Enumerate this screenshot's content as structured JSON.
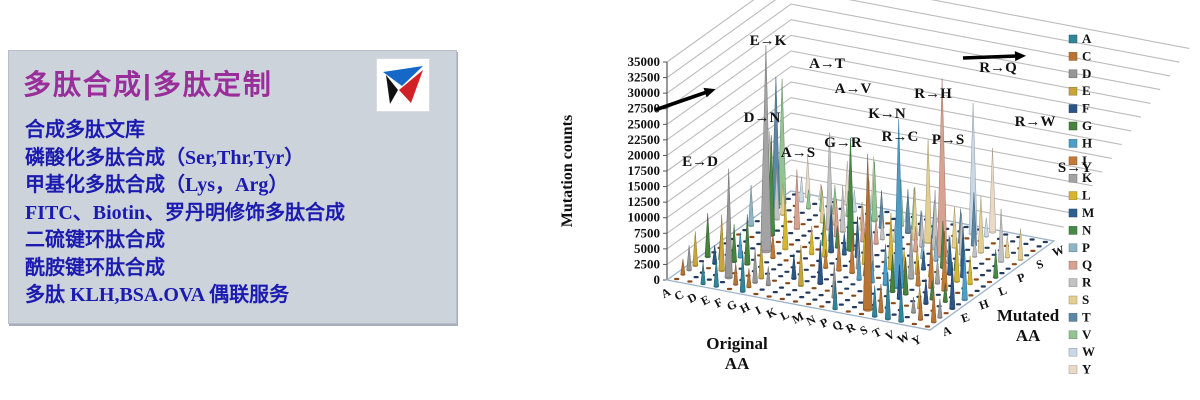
{
  "promo_panel": {
    "title": "多肽合成|多肽定制",
    "title_color": "#992d99",
    "background": "#cdd3db",
    "text_color": "#1b1bb0",
    "services": [
      "合成多肽文库",
      "磷酸化多肽合成（Ser,Thr,Tyr）",
      "甲基化多肽合成（Lys，Arg）",
      "FITC、Biotin、罗丹明修饰多肽合成",
      "二硫键环肽合成",
      "酰胺键环肽合成",
      "多肽 KLH,BSA.OVA 偶联服务"
    ],
    "logo_colors": {
      "blue": "#1668c8",
      "black": "#111111",
      "red": "#d22027"
    }
  },
  "chart_data": {
    "type": "3d-cone-grid",
    "ylabel": "Mutation counts",
    "xlabel": "Original AA",
    "zlabel": "Mutated AA",
    "ylim": [
      0,
      35000
    ],
    "ytick_step": 2500,
    "original_aa": [
      "A",
      "C",
      "D",
      "E",
      "F",
      "G",
      "H",
      "I",
      "K",
      "L",
      "M",
      "N",
      "P",
      "Q",
      "R",
      "S",
      "T",
      "V",
      "W",
      "Y"
    ],
    "mutated_aa": [
      "A",
      "C",
      "D",
      "E",
      "F",
      "G",
      "H",
      "I",
      "K",
      "L",
      "M",
      "N",
      "P",
      "Q",
      "R",
      "S",
      "T",
      "V",
      "W",
      "Y"
    ],
    "mutated_axis_shown_labels": [
      "A",
      "E",
      "H",
      "L",
      "P",
      "S",
      "W"
    ],
    "legend": [
      {
        "label": "A",
        "color": "#31859b"
      },
      {
        "label": "C",
        "color": "#b77434"
      },
      {
        "label": "D",
        "color": "#969696"
      },
      {
        "label": "E",
        "color": "#c8a53a"
      },
      {
        "label": "F",
        "color": "#2c5586"
      },
      {
        "label": "G",
        "color": "#47823f"
      },
      {
        "label": "H",
        "color": "#4d9dc6"
      },
      {
        "label": "I",
        "color": "#c17a37"
      },
      {
        "label": "K",
        "color": "#a3a3a3"
      },
      {
        "label": "L",
        "color": "#d6b62f"
      },
      {
        "label": "M",
        "color": "#2f5f8f"
      },
      {
        "label": "N",
        "color": "#478a48"
      },
      {
        "label": "P",
        "color": "#8cb6c6"
      },
      {
        "label": "Q",
        "color": "#d8a291"
      },
      {
        "label": "R",
        "color": "#c2c2c2"
      },
      {
        "label": "S",
        "color": "#e3cf94"
      },
      {
        "label": "T",
        "color": "#5c88a6"
      },
      {
        "label": "V",
        "color": "#92c390"
      },
      {
        "label": "W",
        "color": "#c9d8e5"
      },
      {
        "label": "Y",
        "color": "#e9d9c7"
      }
    ],
    "annotations": [
      {
        "label": "E→K",
        "from": "E",
        "to": "K",
        "count": 33000
      },
      {
        "label": "A→T",
        "from": "A",
        "to": "T",
        "count": 21000
      },
      {
        "label": "A→V",
        "from": "A",
        "to": "V",
        "count": 20000
      },
      {
        "label": "D→N",
        "from": "D",
        "to": "N",
        "count": 16000
      },
      {
        "label": "K→N",
        "from": "K",
        "to": "N",
        "count": 18000
      },
      {
        "label": "R→H",
        "from": "R",
        "to": "H",
        "count": 27000
      },
      {
        "label": "R→Q",
        "from": "R",
        "to": "Q",
        "count": 28500
      },
      {
        "label": "G→R",
        "from": "G",
        "to": "R",
        "count": 15500
      },
      {
        "label": "R→C",
        "from": "R",
        "to": "C",
        "count": 25000
      },
      {
        "label": "P→S",
        "from": "P",
        "to": "S",
        "count": 16500
      },
      {
        "label": "R→W",
        "from": "R",
        "to": "W",
        "count": 21000
      },
      {
        "label": "A→S",
        "from": "A",
        "to": "S",
        "count": 13000
      },
      {
        "label": "E→D",
        "from": "E",
        "to": "D",
        "count": 17500
      },
      {
        "label": "S→Y",
        "from": "S",
        "to": "Y",
        "count": 13500
      }
    ],
    "spikes": [
      [
        "A",
        "C",
        2500
      ],
      [
        "A",
        "D",
        4000
      ],
      [
        "A",
        "E",
        5500
      ],
      [
        "A",
        "G",
        7000
      ],
      [
        "A",
        "P",
        6500
      ],
      [
        "C",
        "F",
        3000
      ],
      [
        "C",
        "G",
        4500
      ],
      [
        "C",
        "R",
        8000
      ],
      [
        "C",
        "S",
        5000
      ],
      [
        "C",
        "W",
        4000
      ],
      [
        "C",
        "Y",
        6500
      ],
      [
        "D",
        "A",
        3500
      ],
      [
        "D",
        "E",
        9000
      ],
      [
        "D",
        "G",
        6000
      ],
      [
        "D",
        "H",
        4000
      ],
      [
        "D",
        "V",
        3000
      ],
      [
        "D",
        "Y",
        2500
      ],
      [
        "E",
        "A",
        4500
      ],
      [
        "E",
        "G",
        8000
      ],
      [
        "E",
        "Q",
        9500
      ],
      [
        "E",
        "V",
        4000
      ],
      [
        "F",
        "C",
        3500
      ],
      [
        "F",
        "I",
        4000
      ],
      [
        "F",
        "L",
        8500
      ],
      [
        "F",
        "S",
        5000
      ],
      [
        "F",
        "V",
        4500
      ],
      [
        "F",
        "Y",
        7000
      ],
      [
        "G",
        "A",
        6500
      ],
      [
        "G",
        "C",
        3000
      ],
      [
        "G",
        "D",
        5500
      ],
      [
        "G",
        "E",
        6000
      ],
      [
        "G",
        "S",
        5000
      ],
      [
        "G",
        "V",
        4000
      ],
      [
        "G",
        "W",
        3500
      ],
      [
        "H",
        "D",
        3000
      ],
      [
        "H",
        "L",
        4500
      ],
      [
        "H",
        "N",
        5000
      ],
      [
        "H",
        "P",
        4000
      ],
      [
        "H",
        "Q",
        6000
      ],
      [
        "H",
        "R",
        7500
      ],
      [
        "H",
        "Y",
        8500
      ],
      [
        "I",
        "F",
        4000
      ],
      [
        "I",
        "L",
        6000
      ],
      [
        "I",
        "M",
        7500
      ],
      [
        "I",
        "N",
        3500
      ],
      [
        "I",
        "S",
        4500
      ],
      [
        "I",
        "T",
        8000
      ],
      [
        "I",
        "V",
        9500
      ],
      [
        "K",
        "E",
        6500
      ],
      [
        "K",
        "I",
        3000
      ],
      [
        "K",
        "M",
        3500
      ],
      [
        "K",
        "Q",
        5500
      ],
      [
        "K",
        "R",
        9000
      ],
      [
        "K",
        "T",
        6000
      ],
      [
        "L",
        "F",
        7000
      ],
      [
        "L",
        "I",
        5500
      ],
      [
        "L",
        "M",
        6500
      ],
      [
        "L",
        "P",
        8500
      ],
      [
        "L",
        "Q",
        4000
      ],
      [
        "L",
        "R",
        3500
      ],
      [
        "L",
        "V",
        7500
      ],
      [
        "L",
        "W",
        3000
      ],
      [
        "M",
        "I",
        6000
      ],
      [
        "M",
        "K",
        4500
      ],
      [
        "M",
        "L",
        5000
      ],
      [
        "M",
        "R",
        3500
      ],
      [
        "M",
        "T",
        7000
      ],
      [
        "M",
        "V",
        6500
      ],
      [
        "N",
        "D",
        5500
      ],
      [
        "N",
        "H",
        4500
      ],
      [
        "N",
        "I",
        3000
      ],
      [
        "N",
        "K",
        6500
      ],
      [
        "N",
        "S",
        8500
      ],
      [
        "N",
        "T",
        4000
      ],
      [
        "N",
        "Y",
        3500
      ],
      [
        "P",
        "A",
        4500
      ],
      [
        "P",
        "H",
        3500
      ],
      [
        "P",
        "L",
        9000
      ],
      [
        "P",
        "Q",
        4000
      ],
      [
        "P",
        "R",
        5500
      ],
      [
        "P",
        "T",
        6000
      ],
      [
        "Q",
        "E",
        5000
      ],
      [
        "Q",
        "H",
        6500
      ],
      [
        "Q",
        "K",
        7000
      ],
      [
        "Q",
        "L",
        3500
      ],
      [
        "Q",
        "P",
        3000
      ],
      [
        "Q",
        "R",
        9500
      ],
      [
        "R",
        "G",
        6000
      ],
      [
        "R",
        "I",
        3500
      ],
      [
        "R",
        "K",
        8500
      ],
      [
        "R",
        "L",
        4500
      ],
      [
        "R",
        "M",
        3000
      ],
      [
        "R",
        "P",
        4000
      ],
      [
        "R",
        "S",
        6500
      ],
      [
        "R",
        "T",
        5500
      ],
      [
        "S",
        "A",
        5000
      ],
      [
        "S",
        "C",
        4500
      ],
      [
        "S",
        "F",
        5500
      ],
      [
        "S",
        "G",
        6000
      ],
      [
        "S",
        "I",
        4000
      ],
      [
        "S",
        "L",
        3000
      ],
      [
        "S",
        "N",
        7500
      ],
      [
        "S",
        "P",
        4500
      ],
      [
        "S",
        "R",
        6500
      ],
      [
        "S",
        "T",
        8500
      ],
      [
        "S",
        "W",
        3000
      ],
      [
        "T",
        "A",
        7500
      ],
      [
        "T",
        "I",
        8500
      ],
      [
        "T",
        "K",
        4000
      ],
      [
        "T",
        "M",
        6000
      ],
      [
        "T",
        "N",
        3500
      ],
      [
        "T",
        "P",
        4500
      ],
      [
        "T",
        "R",
        3000
      ],
      [
        "T",
        "S",
        9000
      ],
      [
        "V",
        "A",
        6000
      ],
      [
        "V",
        "D",
        2500
      ],
      [
        "V",
        "E",
        3500
      ],
      [
        "V",
        "F",
        4000
      ],
      [
        "V",
        "G",
        3000
      ],
      [
        "V",
        "I",
        9500
      ],
      [
        "V",
        "L",
        7000
      ],
      [
        "V",
        "M",
        8000
      ],
      [
        "W",
        "C",
        4000
      ],
      [
        "W",
        "G",
        3000
      ],
      [
        "W",
        "L",
        4500
      ],
      [
        "W",
        "R",
        8500
      ],
      [
        "W",
        "S",
        3500
      ],
      [
        "Y",
        "C",
        5500
      ],
      [
        "Y",
        "D",
        3000
      ],
      [
        "Y",
        "F",
        7500
      ],
      [
        "Y",
        "H",
        8000
      ],
      [
        "Y",
        "N",
        4500
      ],
      [
        "Y",
        "S",
        5000
      ]
    ]
  }
}
